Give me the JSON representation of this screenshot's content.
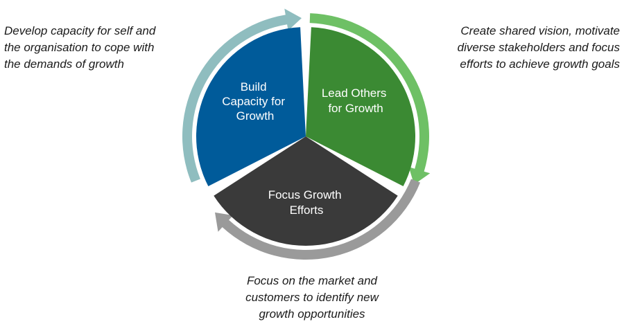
{
  "segments": {
    "build": {
      "label_lines": [
        "Build",
        "Capacity for",
        "Growth"
      ],
      "fill_color": "#005b9a",
      "arrow_color": "#8fbdbf"
    },
    "lead": {
      "label_lines": [
        "Lead Others",
        "for Growth"
      ],
      "fill_color": "#3b8a33",
      "arrow_color": "#6ec065"
    },
    "focus": {
      "label_lines": [
        "Focus Growth",
        "Efforts"
      ],
      "fill_color": "#3a3a3a",
      "arrow_color": "#9a9a9a"
    }
  },
  "annotations": {
    "build": [
      "Develop capacity for self and",
      "the organisation to cope with",
      "the demands of growth"
    ],
    "lead": [
      "Create shared vision, motivate",
      "diverse stakeholders and focus",
      "efforts to achieve growth goals"
    ],
    "focus": [
      "Focus on the market and",
      "customers to identify new",
      "growth opportunities"
    ]
  }
}
